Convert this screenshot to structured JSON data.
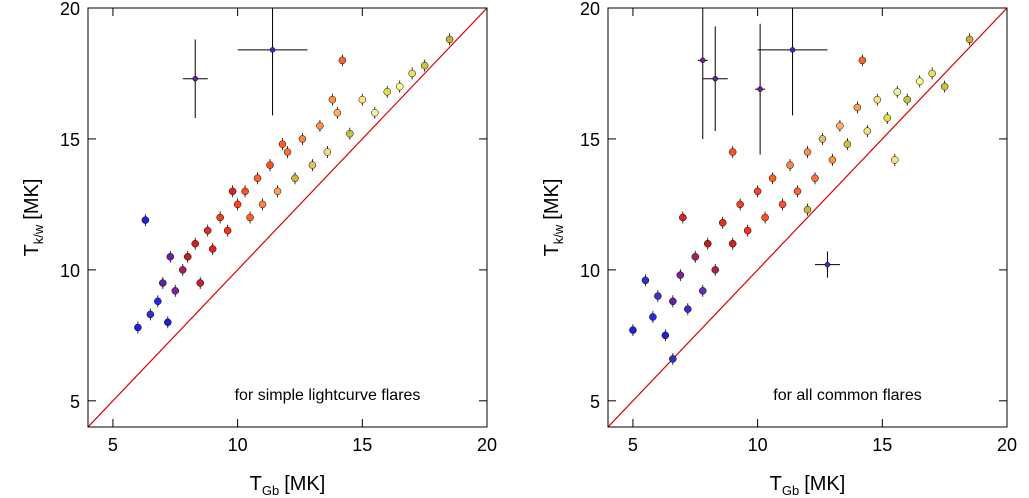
{
  "chart_data": [
    {
      "type": "scatter",
      "annotation": "for simple lightcurve flares",
      "xlabel": {
        "main": "T",
        "sub": "Gb",
        "unit": "[MK]"
      },
      "ylabel": {
        "main": "T",
        "sub": "k/w",
        "unit": "[MK]"
      },
      "xlim": [
        4,
        20
      ],
      "ylim": [
        4,
        20
      ],
      "xticks": [
        5,
        10,
        15,
        20
      ],
      "yticks": [
        5,
        10,
        15,
        20
      ],
      "x": [
        6.0,
        6.5,
        6.8,
        7.0,
        7.2,
        7.5,
        7.8,
        8.0,
        8.3,
        8.5,
        8.8,
        9.0,
        9.3,
        9.6,
        10.0,
        10.3,
        10.5,
        10.8,
        11.0,
        11.3,
        11.6,
        12.0,
        12.3,
        12.6,
        13.0,
        13.3,
        13.6,
        14.0,
        14.5,
        15.0,
        15.5,
        16.0,
        16.5,
        17.0,
        17.5,
        18.5,
        14.2,
        6.3,
        7.3,
        9.8,
        11.8,
        13.8
      ],
      "values": [
        7.8,
        8.3,
        8.8,
        9.5,
        8.0,
        9.2,
        10.0,
        10.5,
        11.0,
        9.5,
        11.5,
        10.8,
        12.0,
        11.5,
        12.5,
        13.0,
        12.0,
        13.5,
        12.5,
        14.0,
        13.0,
        14.5,
        13.5,
        15.0,
        14.0,
        15.5,
        14.5,
        16.0,
        15.2,
        16.5,
        16.0,
        16.8,
        17.0,
        17.5,
        17.8,
        18.8,
        18.0,
        11.9,
        10.5,
        13.0,
        14.8,
        16.5
      ],
      "colors": [
        "#2020e0",
        "#3030d0",
        "#2828e8",
        "#6020a0",
        "#2020d0",
        "#8020a0",
        "#a02060",
        "#c02020",
        "#d02020",
        "#c02030",
        "#e03020",
        "#e02020",
        "#f04020",
        "#ff3020",
        "#ff4020",
        "#ff5020",
        "#ff6020",
        "#ff6030",
        "#ff8040",
        "#ff5020",
        "#ffa050",
        "#ff7030",
        "#d0b040",
        "#ff8040",
        "#e0c060",
        "#ff9040",
        "#f0e080",
        "#ffb060",
        "#c8c040",
        "#ffe080",
        "#f0f0a0",
        "#e0e040",
        "#ffff80",
        "#e8e060",
        "#d0c040",
        "#c8b030",
        "#ff6030",
        "#2020e0",
        "#7020a0",
        "#e02020",
        "#ff6020",
        "#ff9040"
      ],
      "errorbars": {
        "x": [
          8.3,
          11.4
        ],
        "values": [
          17.3,
          18.4
        ],
        "xerr": [
          0.5,
          1.4
        ],
        "yerr": [
          1.5,
          2.5
        ],
        "colors": [
          "#6020a0",
          "#3030c0"
        ]
      }
    },
    {
      "type": "scatter",
      "annotation": "for all common flares",
      "xlabel": {
        "main": "T",
        "sub": "Gb",
        "unit": "[MK]"
      },
      "ylabel": {
        "main": "T",
        "sub": "k/w",
        "unit": "[MK]"
      },
      "xlim": [
        4,
        20
      ],
      "ylim": [
        4,
        20
      ],
      "xticks": [
        5,
        10,
        15,
        20
      ],
      "yticks": [
        5,
        10,
        15,
        20
      ],
      "x": [
        5.0,
        5.5,
        5.8,
        6.0,
        6.3,
        6.6,
        6.9,
        7.2,
        7.5,
        7.8,
        8.0,
        8.3,
        8.6,
        9.0,
        9.3,
        9.6,
        10.0,
        10.3,
        10.6,
        11.0,
        11.3,
        11.6,
        12.0,
        12.3,
        12.6,
        13.0,
        13.3,
        13.6,
        14.0,
        14.4,
        14.8,
        15.2,
        15.6,
        16.0,
        16.5,
        17.0,
        17.5,
        18.5,
        6.6,
        14.2,
        7.0,
        9.0,
        12.0,
        15.5
      ],
      "values": [
        7.7,
        9.6,
        8.2,
        9.0,
        7.5,
        8.8,
        9.8,
        8.5,
        10.5,
        9.2,
        11.0,
        10.0,
        11.8,
        11.0,
        12.5,
        11.5,
        13.0,
        12.0,
        13.5,
        12.5,
        14.0,
        13.0,
        14.5,
        13.5,
        15.0,
        14.2,
        15.5,
        14.8,
        16.2,
        15.3,
        16.5,
        15.8,
        16.8,
        16.5,
        17.2,
        17.5,
        17.0,
        18.8,
        6.6,
        18.0,
        12.0,
        14.5,
        12.3,
        14.2
      ],
      "colors": [
        "#2020e0",
        "#3030d0",
        "#2828e8",
        "#4030c0",
        "#2020d0",
        "#6020a0",
        "#8020a0",
        "#3030d0",
        "#a02060",
        "#6030b0",
        "#c02020",
        "#b02040",
        "#e03020",
        "#d02020",
        "#f04020",
        "#ff3020",
        "#ff4020",
        "#ff5020",
        "#ff6020",
        "#ff5030",
        "#ff8040",
        "#ff6030",
        "#ff9050",
        "#ff7030",
        "#e0c060",
        "#ff9040",
        "#ffb060",
        "#d0c040",
        "#ffa050",
        "#f0e080",
        "#ffe080",
        "#e0e040",
        "#f0f0a0",
        "#c8c040",
        "#ffff80",
        "#e8e060",
        "#d0c040",
        "#c8b030",
        "#3030c0",
        "#ff6030",
        "#e02020",
        "#ff5020",
        "#d0b040",
        "#ffe080"
      ],
      "errorbars": {
        "x": [
          11.4,
          12.8,
          8.3,
          7.8,
          10.1
        ],
        "values": [
          18.4,
          10.2,
          17.3,
          18.0,
          16.9
        ],
        "xerr": [
          1.4,
          0.5,
          0.5,
          0.2,
          0.2
        ],
        "yerr": [
          2.5,
          0.5,
          2.0,
          3.0,
          2.5
        ],
        "colors": [
          "#3030c0",
          "#3030c0",
          "#6020a0",
          "#7020a0",
          "#6020a0"
        ]
      }
    }
  ]
}
